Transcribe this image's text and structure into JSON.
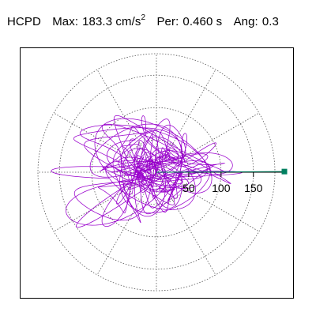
{
  "header": {
    "name": "HCPD",
    "max_label": "Max:",
    "max_value": "183.3",
    "max_unit_base": "cm/s",
    "max_unit_exp": "2",
    "per_label": "Per:",
    "per_value": "0.460 s",
    "ang_label": "Ang:",
    "ang_value": "0.3"
  },
  "chart_data": {
    "type": "scatter",
    "subtype": "polar-orbit",
    "radial_ticks": [
      50,
      100,
      150
    ],
    "radial_rings": [
      50,
      100,
      150
    ],
    "radial_max": 183.3,
    "spokes_deg": [
      0,
      30,
      60,
      90,
      120,
      150,
      180,
      210,
      240,
      270,
      300,
      330
    ],
    "peak_vector": {
      "angle_deg": 0.3,
      "magnitude": 183.3
    },
    "grid": "dotted",
    "colors": {
      "orbit": "#9900cc",
      "peak_marker": "#008060",
      "axis": "#000000",
      "grid": "#555555"
    }
  }
}
